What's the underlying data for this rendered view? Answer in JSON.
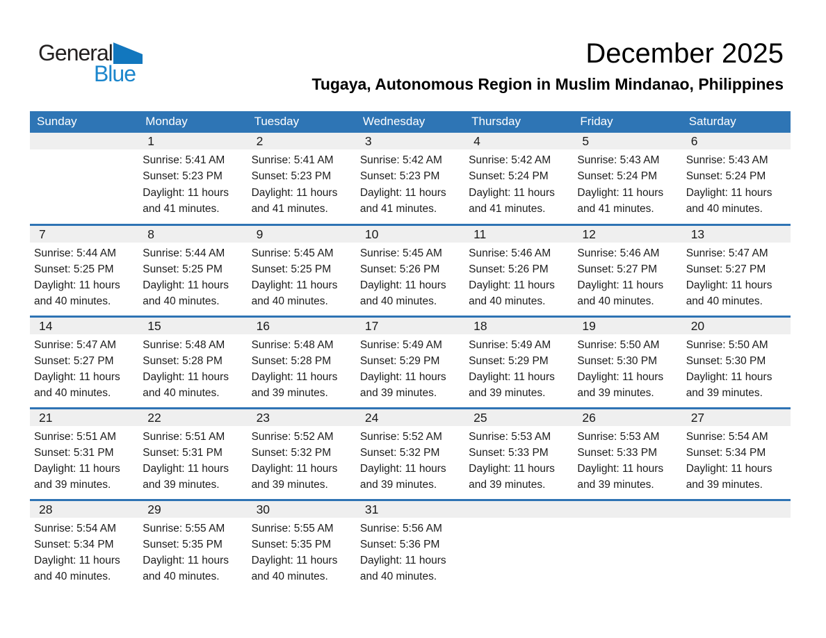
{
  "logo": {
    "general": "General",
    "blue": "Blue"
  },
  "header": {
    "title": "December 2025",
    "subtitle": "Tugaya, Autonomous Region in Muslim Mindanao, Philippines"
  },
  "colors": {
    "header_bar_bg": "#2e75b5",
    "row_divider": "#2e73b4",
    "day_band_bg": "#efefef",
    "logo_triangle_blue": "#1277be",
    "logo_text_blue": "#1c86cc",
    "header_text": "#ffffff",
    "body_text": "#1b1b1b"
  },
  "weekdays": [
    "Sunday",
    "Monday",
    "Tuesday",
    "Wednesday",
    "Thursday",
    "Friday",
    "Saturday"
  ],
  "weeks": [
    {
      "days": [
        {
          "date": "",
          "lines": []
        },
        {
          "date": "1",
          "lines": [
            "Sunrise: 5:41 AM",
            "Sunset: 5:23 PM",
            "Daylight: 11 hours",
            "and 41 minutes."
          ]
        },
        {
          "date": "2",
          "lines": [
            "Sunrise: 5:41 AM",
            "Sunset: 5:23 PM",
            "Daylight: 11 hours",
            "and 41 minutes."
          ]
        },
        {
          "date": "3",
          "lines": [
            "Sunrise: 5:42 AM",
            "Sunset: 5:23 PM",
            "Daylight: 11 hours",
            "and 41 minutes."
          ]
        },
        {
          "date": "4",
          "lines": [
            "Sunrise: 5:42 AM",
            "Sunset: 5:24 PM",
            "Daylight: 11 hours",
            "and 41 minutes."
          ]
        },
        {
          "date": "5",
          "lines": [
            "Sunrise: 5:43 AM",
            "Sunset: 5:24 PM",
            "Daylight: 11 hours",
            "and 41 minutes."
          ]
        },
        {
          "date": "6",
          "lines": [
            "Sunrise: 5:43 AM",
            "Sunset: 5:24 PM",
            "Daylight: 11 hours",
            "and 40 minutes."
          ]
        }
      ]
    },
    {
      "days": [
        {
          "date": "7",
          "lines": [
            "Sunrise: 5:44 AM",
            "Sunset: 5:25 PM",
            "Daylight: 11 hours",
            "and 40 minutes."
          ]
        },
        {
          "date": "8",
          "lines": [
            "Sunrise: 5:44 AM",
            "Sunset: 5:25 PM",
            "Daylight: 11 hours",
            "and 40 minutes."
          ]
        },
        {
          "date": "9",
          "lines": [
            "Sunrise: 5:45 AM",
            "Sunset: 5:25 PM",
            "Daylight: 11 hours",
            "and 40 minutes."
          ]
        },
        {
          "date": "10",
          "lines": [
            "Sunrise: 5:45 AM",
            "Sunset: 5:26 PM",
            "Daylight: 11 hours",
            "and 40 minutes."
          ]
        },
        {
          "date": "11",
          "lines": [
            "Sunrise: 5:46 AM",
            "Sunset: 5:26 PM",
            "Daylight: 11 hours",
            "and 40 minutes."
          ]
        },
        {
          "date": "12",
          "lines": [
            "Sunrise: 5:46 AM",
            "Sunset: 5:27 PM",
            "Daylight: 11 hours",
            "and 40 minutes."
          ]
        },
        {
          "date": "13",
          "lines": [
            "Sunrise: 5:47 AM",
            "Sunset: 5:27 PM",
            "Daylight: 11 hours",
            "and 40 minutes."
          ]
        }
      ]
    },
    {
      "days": [
        {
          "date": "14",
          "lines": [
            "Sunrise: 5:47 AM",
            "Sunset: 5:27 PM",
            "Daylight: 11 hours",
            "and 40 minutes."
          ]
        },
        {
          "date": "15",
          "lines": [
            "Sunrise: 5:48 AM",
            "Sunset: 5:28 PM",
            "Daylight: 11 hours",
            "and 40 minutes."
          ]
        },
        {
          "date": "16",
          "lines": [
            "Sunrise: 5:48 AM",
            "Sunset: 5:28 PM",
            "Daylight: 11 hours",
            "and 39 minutes."
          ]
        },
        {
          "date": "17",
          "lines": [
            "Sunrise: 5:49 AM",
            "Sunset: 5:29 PM",
            "Daylight: 11 hours",
            "and 39 minutes."
          ]
        },
        {
          "date": "18",
          "lines": [
            "Sunrise: 5:49 AM",
            "Sunset: 5:29 PM",
            "Daylight: 11 hours",
            "and 39 minutes."
          ]
        },
        {
          "date": "19",
          "lines": [
            "Sunrise: 5:50 AM",
            "Sunset: 5:30 PM",
            "Daylight: 11 hours",
            "and 39 minutes."
          ]
        },
        {
          "date": "20",
          "lines": [
            "Sunrise: 5:50 AM",
            "Sunset: 5:30 PM",
            "Daylight: 11 hours",
            "and 39 minutes."
          ]
        }
      ]
    },
    {
      "days": [
        {
          "date": "21",
          "lines": [
            "Sunrise: 5:51 AM",
            "Sunset: 5:31 PM",
            "Daylight: 11 hours",
            "and 39 minutes."
          ]
        },
        {
          "date": "22",
          "lines": [
            "Sunrise: 5:51 AM",
            "Sunset: 5:31 PM",
            "Daylight: 11 hours",
            "and 39 minutes."
          ]
        },
        {
          "date": "23",
          "lines": [
            "Sunrise: 5:52 AM",
            "Sunset: 5:32 PM",
            "Daylight: 11 hours",
            "and 39 minutes."
          ]
        },
        {
          "date": "24",
          "lines": [
            "Sunrise: 5:52 AM",
            "Sunset: 5:32 PM",
            "Daylight: 11 hours",
            "and 39 minutes."
          ]
        },
        {
          "date": "25",
          "lines": [
            "Sunrise: 5:53 AM",
            "Sunset: 5:33 PM",
            "Daylight: 11 hours",
            "and 39 minutes."
          ]
        },
        {
          "date": "26",
          "lines": [
            "Sunrise: 5:53 AM",
            "Sunset: 5:33 PM",
            "Daylight: 11 hours",
            "and 39 minutes."
          ]
        },
        {
          "date": "27",
          "lines": [
            "Sunrise: 5:54 AM",
            "Sunset: 5:34 PM",
            "Daylight: 11 hours",
            "and 39 minutes."
          ]
        }
      ]
    },
    {
      "days": [
        {
          "date": "28",
          "lines": [
            "Sunrise: 5:54 AM",
            "Sunset: 5:34 PM",
            "Daylight: 11 hours",
            "and 40 minutes."
          ]
        },
        {
          "date": "29",
          "lines": [
            "Sunrise: 5:55 AM",
            "Sunset: 5:35 PM",
            "Daylight: 11 hours",
            "and 40 minutes."
          ]
        },
        {
          "date": "30",
          "lines": [
            "Sunrise: 5:55 AM",
            "Sunset: 5:35 PM",
            "Daylight: 11 hours",
            "and 40 minutes."
          ]
        },
        {
          "date": "31",
          "lines": [
            "Sunrise: 5:56 AM",
            "Sunset: 5:36 PM",
            "Daylight: 11 hours",
            "and 40 minutes."
          ]
        },
        {
          "date": "",
          "lines": []
        },
        {
          "date": "",
          "lines": []
        },
        {
          "date": "",
          "lines": []
        }
      ]
    }
  ]
}
